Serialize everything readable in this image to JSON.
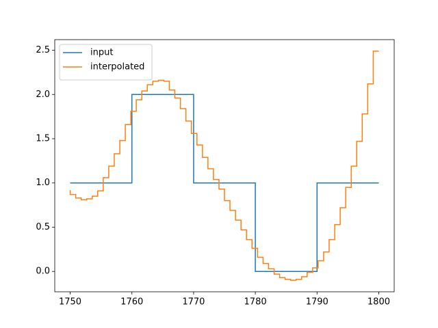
{
  "chart_data": {
    "type": "step",
    "step_where": "pre",
    "xlim": [
      1747.5,
      1802.5
    ],
    "ylim": [
      -0.23,
      2.62
    ],
    "xticks": [
      1750,
      1760,
      1770,
      1780,
      1790,
      1800
    ],
    "yticks": [
      {
        "value": 0,
        "label": "0.0"
      },
      0.5,
      {
        "value": 1,
        "label": "1.0"
      },
      1.5,
      {
        "value": 2,
        "label": "2.0"
      },
      2.5
    ],
    "legend": "upper left",
    "series": [
      {
        "name": "input",
        "color": "#1f77b4",
        "x": [
          1750,
          1760,
          1770,
          1780,
          1790,
          1800
        ],
        "values": [
          1,
          1,
          2,
          1,
          0,
          1
        ]
      },
      {
        "name": "interpolated",
        "color": "#ff7f0e",
        "x": [
          1750,
          1750.89,
          1751.79,
          1752.68,
          1753.57,
          1754.46,
          1755.36,
          1756.25,
          1757.14,
          1758.04,
          1758.93,
          1759.82,
          1760.71,
          1761.61,
          1762.5,
          1763.39,
          1764.29,
          1765.18,
          1766.07,
          1766.96,
          1767.86,
          1768.75,
          1769.64,
          1770.54,
          1771.43,
          1772.32,
          1773.21,
          1774.11,
          1775,
          1775.89,
          1776.79,
          1777.68,
          1778.57,
          1779.46,
          1780.36,
          1781.25,
          1782.14,
          1783.04,
          1783.93,
          1784.82,
          1785.71,
          1786.61,
          1787.5,
          1788.39,
          1789.29,
          1790.18,
          1791.07,
          1791.96,
          1792.86,
          1793.75,
          1794.64,
          1795.54,
          1796.43,
          1797.32,
          1798.21,
          1799.11,
          1800
        ],
        "values": [
          0.92,
          0.87,
          0.83,
          0.81,
          0.82,
          0.85,
          0.91,
          1.06,
          1.19,
          1.33,
          1.48,
          1.66,
          1.81,
          1.94,
          2.04,
          2.11,
          2.15,
          2.16,
          2.15,
          2.05,
          1.96,
          1.84,
          1.7,
          1.56,
          1.43,
          1.29,
          1.16,
          1.04,
          0.93,
          0.8,
          0.69,
          0.58,
          0.47,
          0.36,
          0.26,
          0.16,
          0.09,
          0.03,
          -0.03,
          -0.07,
          -0.09,
          -0.1,
          -0.09,
          -0.06,
          -0.01,
          0.04,
          0.12,
          0.22,
          0.36,
          0.53,
          0.72,
          0.95,
          1.19,
          1.47,
          1.78,
          2.12,
          2.49
        ]
      }
    ]
  }
}
